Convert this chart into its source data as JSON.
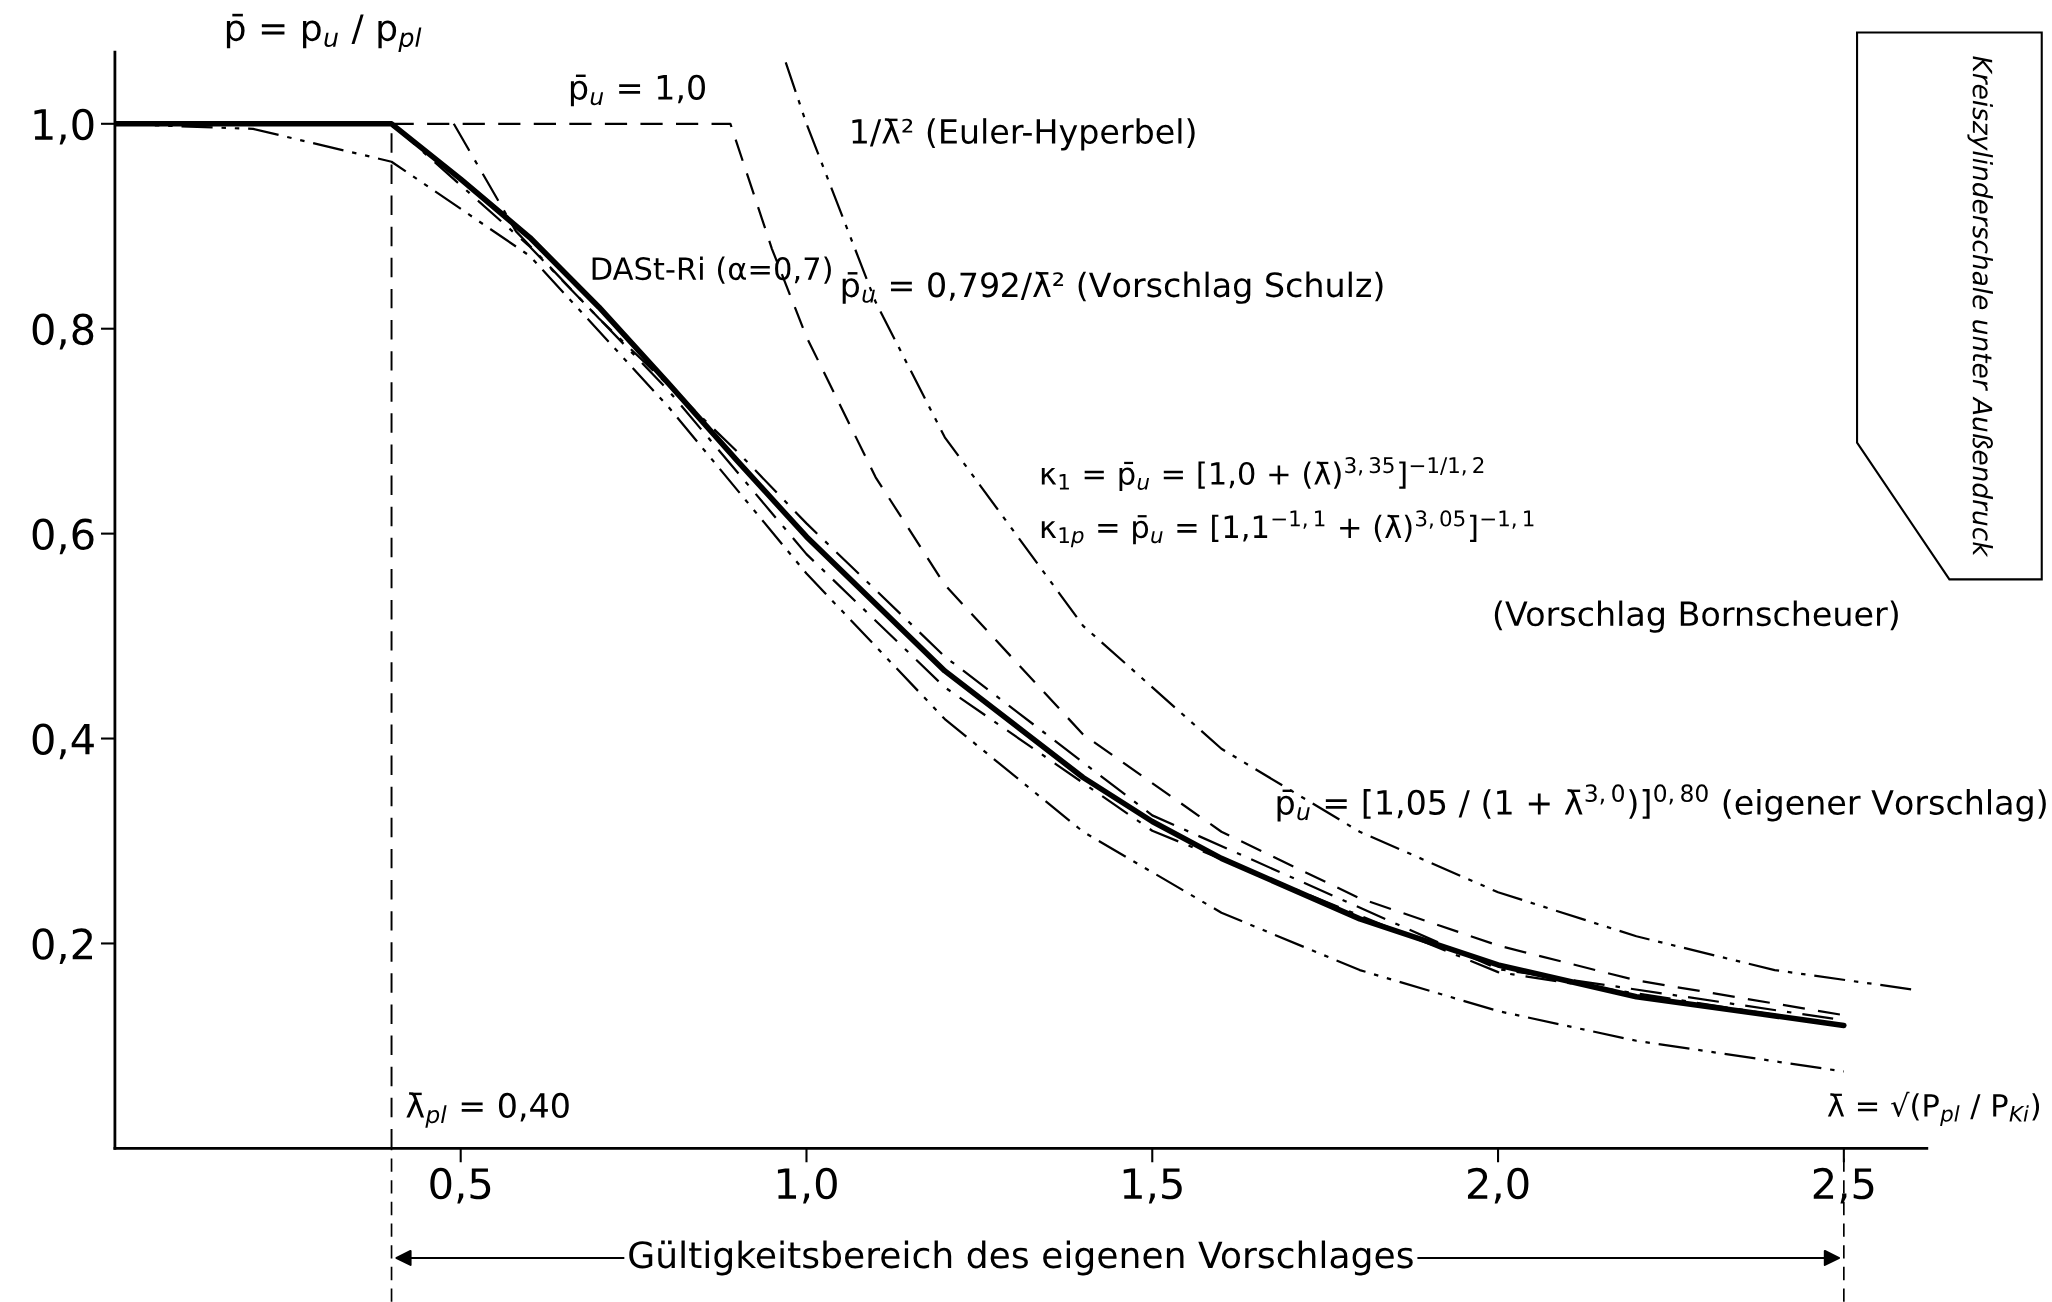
{
  "chart_data": {
    "type": "line",
    "xlabel": "λ̄ = √(P$_{pl}$ / P$_{Ki}$)",
    "ylabel": "p̄ = p$_{u}$ / p$_{pl}$",
    "xlim": [
      0,
      2.62
    ],
    "ylim": [
      0,
      1.07
    ],
    "xticks": [
      {
        "value": 0.5,
        "label": "0,5"
      },
      {
        "value": 1.0,
        "label": "1,0"
      },
      {
        "value": 1.5,
        "label": "1,5"
      },
      {
        "value": 2.0,
        "label": "2,0"
      },
      {
        "value": 2.5,
        "label": "2,5"
      }
    ],
    "yticks": [
      {
        "value": 0.2,
        "label": "0,2"
      },
      {
        "value": 0.4,
        "label": "0,4"
      },
      {
        "value": 0.6,
        "label": "0,6"
      },
      {
        "value": 0.8,
        "label": "0,8"
      },
      {
        "value": 1.0,
        "label": "1,0"
      }
    ],
    "grid": false,
    "marker": "none",
    "series": [
      {
        "color": "#000000",
        "line_style": "solid",
        "x": [
          0,
          0.4,
          0.5,
          0.6,
          0.7,
          0.8,
          0.9,
          1.0,
          1.2,
          1.4,
          1.5,
          1.6,
          1.8,
          2.0,
          2.2,
          2.5
        ],
        "values": [
          1.0,
          1.0,
          0.946,
          0.889,
          0.821,
          0.747,
          0.671,
          0.597,
          0.466,
          0.362,
          0.319,
          0.283,
          0.224,
          0.179,
          0.148,
          0.12
        ]
      },
      {
        "color": "#000000",
        "line_style": "dashed",
        "x": [
          0.4,
          0.89,
          0.95,
          1.0,
          1.1,
          1.2,
          1.4,
          1.6,
          1.8,
          2.0,
          2.2,
          2.5
        ],
        "values": [
          1.0,
          1.0,
          0.878,
          0.792,
          0.655,
          0.55,
          0.404,
          0.309,
          0.244,
          0.198,
          0.164,
          0.13
        ]
      },
      {
        "color": "#000000",
        "line_style": "dashdotdot",
        "x": [
          0.97,
          1.0,
          1.1,
          1.2,
          1.4,
          1.6,
          1.8,
          2.0,
          2.2,
          2.4,
          2.6
        ],
        "values": [
          1.06,
          1.0,
          0.826,
          0.694,
          0.51,
          0.39,
          0.309,
          0.25,
          0.207,
          0.174,
          0.155
        ]
      },
      {
        "color": "#000000",
        "line_style": "dashdotdot",
        "x": [
          0,
          0.2,
          0.4,
          0.6,
          0.8,
          1.0,
          1.2,
          1.4,
          1.6,
          1.8,
          2.0,
          2.2,
          2.5
        ],
        "values": [
          1.0,
          0.995,
          0.963,
          0.871,
          0.724,
          0.561,
          0.419,
          0.309,
          0.23,
          0.174,
          0.134,
          0.105,
          0.075
        ]
      },
      {
        "color": "#000000",
        "line_style": "dashdot",
        "x": [
          0.4,
          0.5,
          0.6,
          0.8,
          1.0,
          1.2,
          1.5,
          2.0,
          2.5
        ],
        "values": [
          1.0,
          0.94,
          0.88,
          0.74,
          0.58,
          0.45,
          0.31,
          0.172,
          0.12
        ]
      },
      {
        "color": "#000000",
        "line_style": "dashdot",
        "x": [
          0.49,
          0.58,
          0.7,
          0.9,
          1.0,
          1.2,
          1.5,
          2.0,
          2.5
        ],
        "values": [
          1.0,
          0.895,
          0.81,
          0.68,
          0.61,
          0.48,
          0.325,
          0.175,
          0.125
        ]
      }
    ],
    "ref_lines": [
      {
        "axis": "x",
        "value": 0.4,
        "label": "λ̄$_{pl}$ = 0,40",
        "line_style": "dashed"
      }
    ],
    "annotations": [
      "p̄$_{u}$ = 1,0",
      "1/λ̄² (Euler-Hyperbel)",
      "DASt-Ri (α=0,7)",
      "p̄$_{u}$ = 0,792/λ̄² (Vorschlag Schulz)",
      "κ$_{1}$ = p̄$_{u}$ = [1,0 + (λ̄)$^{3,35}$]$^{−1/1,2}$",
      "κ$_{1p}$ = p̄$_{u}$ = [1,1$^{−1,1}$ + (λ̄)$^{3,05}$]$^{−1,1}$",
      "(Vorschlag Bornscheuer)",
      "p̄$_{u}$ = [1,05 / (1 + λ̄$^{3,0}$)]$^{0,80}$ (eigener Vorschlag)",
      "Gültigkeitsbereich des eigenen Vorschlages",
      "Kreiszylinderschale unter Außendruck"
    ]
  }
}
